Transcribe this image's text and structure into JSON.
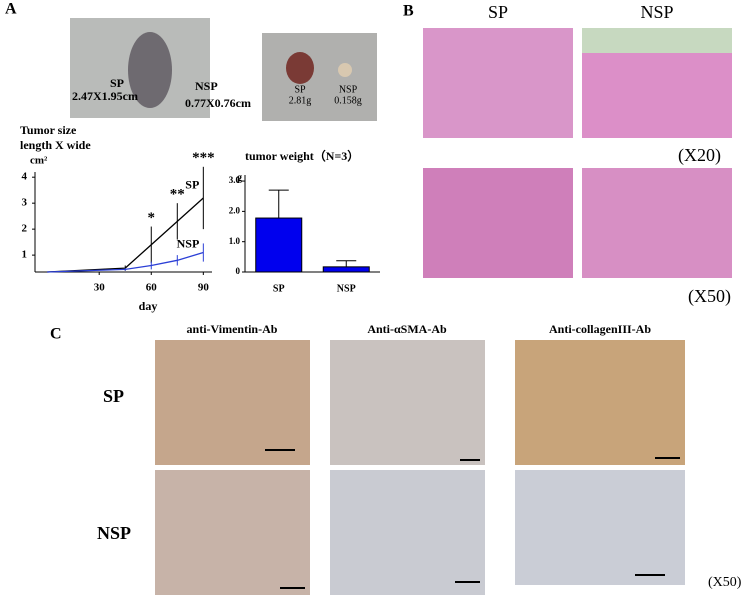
{
  "panels": {
    "a": "A",
    "b": "B",
    "c": "C"
  },
  "panel_a": {
    "mouse_labels": [
      "SP",
      "2.47X1.95cm",
      "NSP",
      "0.77X0.76cm"
    ],
    "tumor_labels": [
      "SP",
      "2.81g",
      "NSP",
      "0.158g"
    ]
  },
  "chart_data": [
    {
      "type": "line",
      "title": "Tumor size",
      "subtitle": "length X wide",
      "y_label": "cm²",
      "x_label": "day",
      "x": [
        0,
        45,
        60,
        75,
        90
      ],
      "xlim": [
        -7,
        95
      ],
      "xticks": [
        30,
        60,
        90
      ],
      "ylim": [
        0.35,
        4.2
      ],
      "yticks": [
        1,
        2,
        3,
        4
      ],
      "series": [
        {
          "name": "SP",
          "color": "#000000",
          "values": [
            0.35,
            0.5,
            1.4,
            2.3,
            3.2
          ],
          "errors": [
            0,
            0.1,
            0.7,
            0.7,
            1.2
          ]
        },
        {
          "name": "NSP",
          "color": "#2b3fd6",
          "values": [
            0.35,
            0.45,
            0.6,
            0.8,
            1.1
          ],
          "errors": [
            0,
            0.05,
            0.15,
            0.2,
            0.35
          ]
        }
      ],
      "annotations": [
        {
          "text": "*",
          "x": 60
        },
        {
          "text": "**",
          "x": 75
        },
        {
          "text": "***",
          "x": 90
        }
      ]
    },
    {
      "type": "bar",
      "title": "tumor weight（N=3）",
      "y_label": "g",
      "categories": [
        "SP",
        "NSP"
      ],
      "values": [
        1.78,
        0.17
      ],
      "errors": [
        0.92,
        0.2
      ],
      "color": "#0000ee",
      "ylim": [
        0,
        3.2
      ],
      "yticks": [
        0,
        {
          "value": 1,
          "label": "1.0"
        },
        {
          "value": 2,
          "label": "2.0"
        },
        {
          "value": 3,
          "label": "3.0"
        }
      ]
    }
  ],
  "panel_b": {
    "columns": [
      "SP",
      "NSP"
    ],
    "magnifications": [
      "(X20)",
      "(X50)"
    ]
  },
  "panel_c": {
    "columns": [
      "anti-Vimentin-Ab",
      "Anti-αSMA-Ab",
      "Anti-collagenIII-Ab"
    ],
    "rows": [
      "SP",
      "NSP"
    ],
    "magnification": "(X50)"
  }
}
